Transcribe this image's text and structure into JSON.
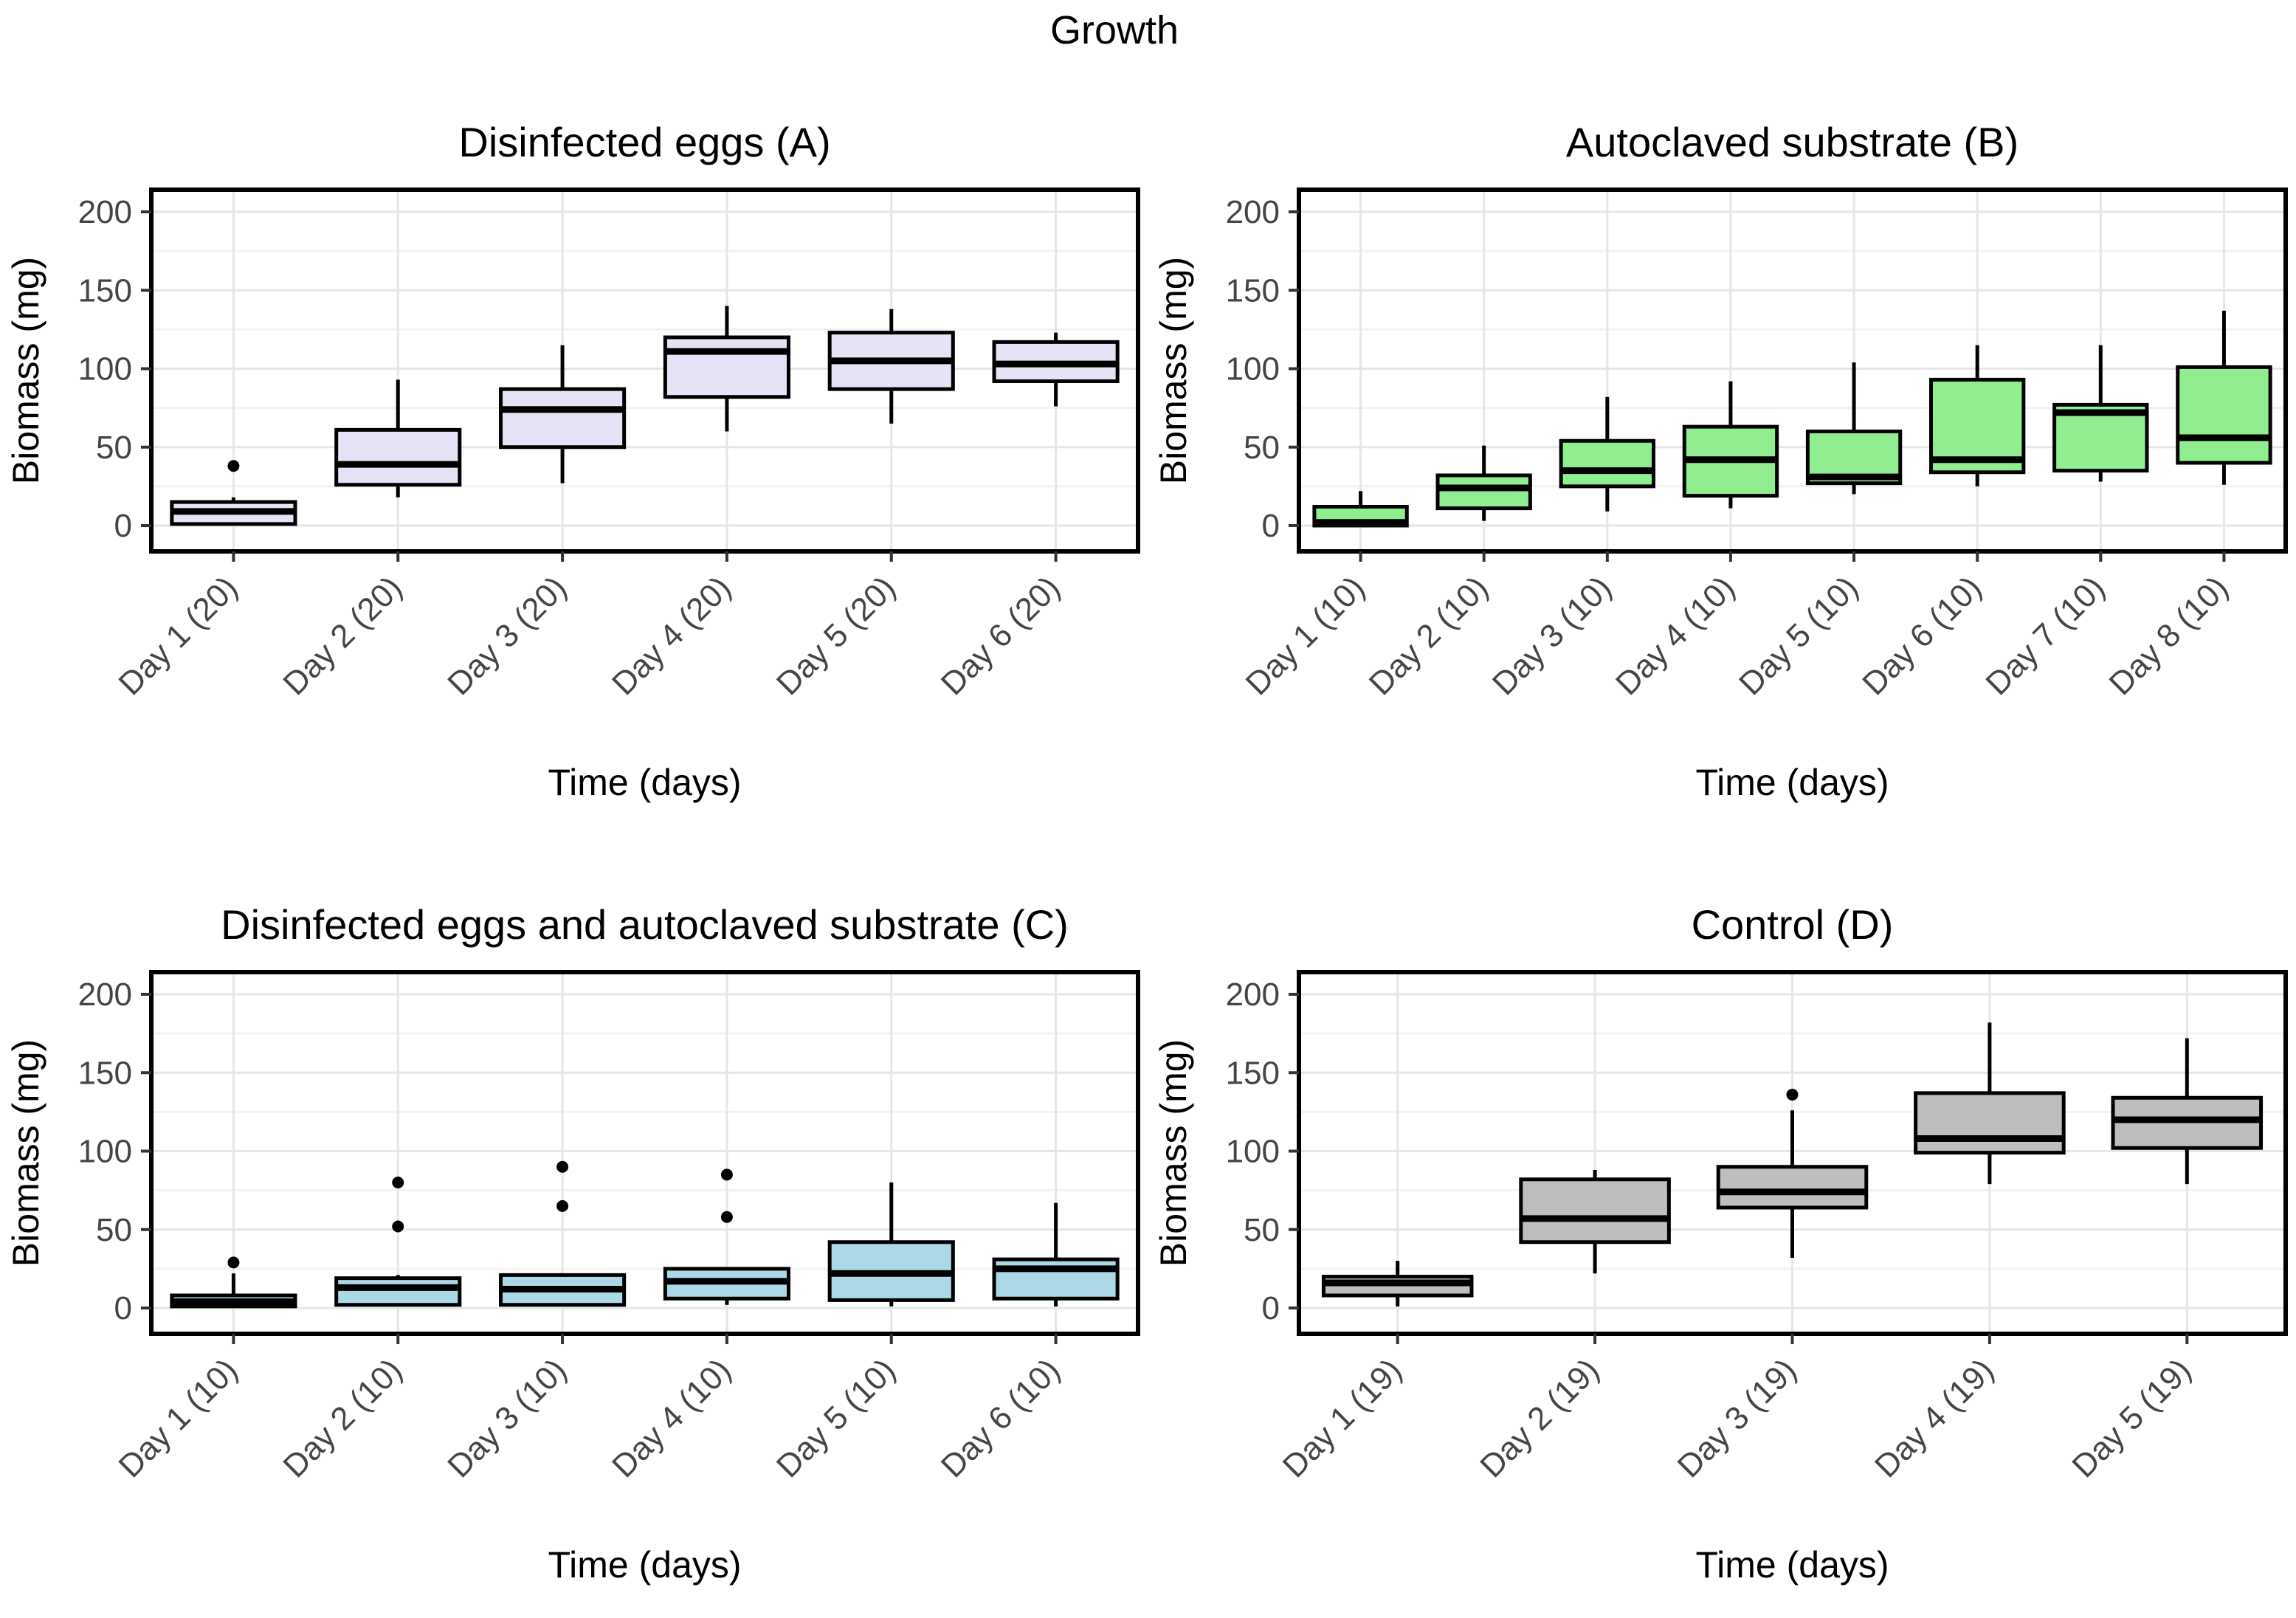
{
  "title": "Growth",
  "chart_data": [
    {
      "type": "boxplot",
      "title": "Disinfected eggs (A)",
      "xlabel": "Time (days)",
      "ylabel": "Biomass (mg)",
      "ylim": [
        0,
        200
      ],
      "yticks": [
        0,
        50,
        100,
        150,
        200
      ],
      "grid": "on",
      "box_fill": "#E4E4F6",
      "categories": [
        "Day 1 (20)",
        "Day 2 (20)",
        "Day 3 (20)",
        "Day 4 (20)",
        "Day 5 (20)",
        "Day 6 (20)"
      ],
      "boxes": [
        {
          "min": 0,
          "q1": 1,
          "median": 9,
          "q3": 15,
          "max": 18,
          "outliers": [
            38
          ]
        },
        {
          "min": 18,
          "q1": 26,
          "median": 39,
          "q3": 61,
          "max": 93,
          "outliers": []
        },
        {
          "min": 27,
          "q1": 50,
          "median": 74,
          "q3": 87,
          "max": 115,
          "outliers": []
        },
        {
          "min": 60,
          "q1": 82,
          "median": 111,
          "q3": 120,
          "max": 140,
          "outliers": []
        },
        {
          "min": 65,
          "q1": 87,
          "median": 105,
          "q3": 123,
          "max": 138,
          "outliers": []
        },
        {
          "min": 76,
          "q1": 92,
          "median": 103,
          "q3": 117,
          "max": 123,
          "outliers": []
        }
      ]
    },
    {
      "type": "boxplot",
      "title": "Autoclaved substrate (B)",
      "xlabel": "Time (days)",
      "ylabel": "Biomass (mg)",
      "ylim": [
        0,
        200
      ],
      "yticks": [
        0,
        50,
        100,
        150,
        200
      ],
      "grid": "on",
      "box_fill": "#90EE90",
      "categories": [
        "Day 1 (10)",
        "Day 2 (10)",
        "Day 3 (10)",
        "Day 4 (10)",
        "Day 5 (10)",
        "Day 6 (10)",
        "Day 7 (10)",
        "Day 8 (10)"
      ],
      "boxes": [
        {
          "min": 0,
          "q1": 0,
          "median": 2,
          "q3": 12,
          "max": 22,
          "outliers": []
        },
        {
          "min": 3,
          "q1": 11,
          "median": 24,
          "q3": 32,
          "max": 51,
          "outliers": []
        },
        {
          "min": 9,
          "q1": 25,
          "median": 35,
          "q3": 54,
          "max": 82,
          "outliers": []
        },
        {
          "min": 11,
          "q1": 19,
          "median": 42,
          "q3": 63,
          "max": 92,
          "outliers": []
        },
        {
          "min": 20,
          "q1": 27,
          "median": 31,
          "q3": 60,
          "max": 104,
          "outliers": []
        },
        {
          "min": 25,
          "q1": 34,
          "median": 42,
          "q3": 93,
          "max": 115,
          "outliers": []
        },
        {
          "min": 28,
          "q1": 35,
          "median": 72,
          "q3": 77,
          "max": 115,
          "outliers": []
        },
        {
          "min": 26,
          "q1": 40,
          "median": 56,
          "q3": 101,
          "max": 137,
          "outliers": []
        }
      ]
    },
    {
      "type": "boxplot",
      "title": "Disinfected eggs and autoclaved substrate (C)",
      "xlabel": "Time (days)",
      "ylabel": "Biomass (mg)",
      "ylim": [
        0,
        200
      ],
      "yticks": [
        0,
        50,
        100,
        150,
        200
      ],
      "grid": "on",
      "box_fill": "#ADD8E6",
      "categories": [
        "Day 1 (10)",
        "Day 2 (10)",
        "Day 3 (10)",
        "Day 4 (10)",
        "Day 5 (10)",
        "Day 6 (10)"
      ],
      "boxes": [
        {
          "min": 0,
          "q1": 1,
          "median": 4,
          "q3": 8,
          "max": 22,
          "outliers": [
            29
          ]
        },
        {
          "min": 1,
          "q1": 2,
          "median": 13,
          "q3": 19,
          "max": 21,
          "outliers": [
            52,
            80
          ]
        },
        {
          "min": 1,
          "q1": 2,
          "median": 12,
          "q3": 21,
          "max": 21,
          "outliers": [
            65,
            90
          ]
        },
        {
          "min": 2,
          "q1": 6,
          "median": 17,
          "q3": 25,
          "max": 25,
          "outliers": [
            58,
            85
          ]
        },
        {
          "min": 1,
          "q1": 5,
          "median": 22,
          "q3": 42,
          "max": 80,
          "outliers": []
        },
        {
          "min": 1,
          "q1": 6,
          "median": 25,
          "q3": 31,
          "max": 67,
          "outliers": []
        }
      ]
    },
    {
      "type": "boxplot",
      "title": "Control (D)",
      "xlabel": "Time (days)",
      "ylabel": "Biomass (mg)",
      "ylim": [
        0,
        200
      ],
      "yticks": [
        0,
        50,
        100,
        150,
        200
      ],
      "grid": "on",
      "box_fill": "#BEBEBE",
      "categories": [
        "Day 1 (19)",
        "Day 2 (19)",
        "Day 3 (19)",
        "Day 4 (19)",
        "Day 5 (19)"
      ],
      "boxes": [
        {
          "min": 1,
          "q1": 8,
          "median": 16,
          "q3": 20,
          "max": 30,
          "outliers": []
        },
        {
          "min": 22,
          "q1": 42,
          "median": 57,
          "q3": 82,
          "max": 88,
          "outliers": []
        },
        {
          "min": 32,
          "q1": 64,
          "median": 74,
          "q3": 90,
          "max": 126,
          "outliers": [
            136
          ]
        },
        {
          "min": 79,
          "q1": 99,
          "median": 108,
          "q3": 137,
          "max": 182,
          "outliers": []
        },
        {
          "min": 79,
          "q1": 102,
          "median": 120,
          "q3": 134,
          "max": 172,
          "outliers": []
        }
      ]
    }
  ],
  "style": {
    "panel_border": "#000000",
    "grid_major": "#E6E6E6",
    "grid_minor": "#F2F2F2",
    "tick_label_color": "#454545",
    "title_color": "#000000",
    "median_color": "#000000",
    "outlier_color": "#000000"
  }
}
